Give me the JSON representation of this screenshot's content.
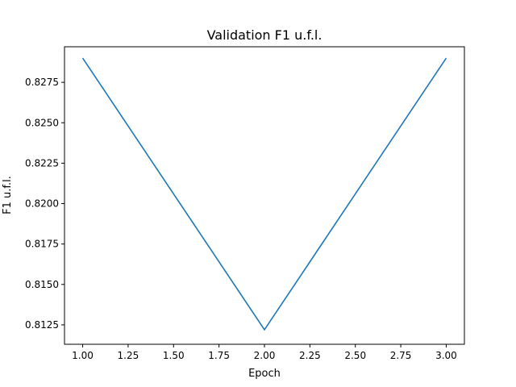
{
  "chart_data": {
    "type": "line",
    "title": "Validation F1 u.f.l.",
    "xlabel": "Epoch",
    "ylabel": "F1 u.f.l.",
    "xlim": [
      0.9,
      3.1
    ],
    "ylim": [
      0.8113,
      0.8297
    ],
    "grid": false,
    "x_ticks": [
      1.0,
      1.25,
      1.5,
      1.75,
      2.0,
      2.25,
      2.5,
      2.75,
      3.0
    ],
    "x_tick_labels": [
      "1.00",
      "1.25",
      "1.50",
      "1.75",
      "2.00",
      "2.25",
      "2.50",
      "2.75",
      "3.00"
    ],
    "y_ticks": [
      0.8125,
      0.815,
      0.8175,
      0.82,
      0.8225,
      0.825,
      0.8275
    ],
    "y_tick_labels": [
      "0.8125",
      "0.8150",
      "0.8175",
      "0.8200",
      "0.8225",
      "0.8250",
      "0.8275"
    ],
    "series": [
      {
        "color": "#1f77b4",
        "x": [
          1.0,
          2.0,
          3.0
        ],
        "y": [
          0.829,
          0.8122,
          0.829
        ]
      }
    ]
  }
}
